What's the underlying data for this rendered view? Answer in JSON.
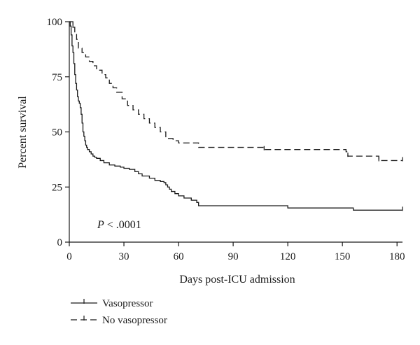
{
  "chart_data": {
    "type": "line",
    "subtype": "kaplan-meier",
    "xlabel": "Days post-ICU admission",
    "ylabel": "Percent survival",
    "xlim": [
      0,
      183
    ],
    "ylim": [
      0,
      100
    ],
    "x_ticks": [
      0,
      30,
      60,
      90,
      120,
      150,
      180
    ],
    "y_ticks": [
      0,
      25,
      50,
      75,
      100
    ],
    "grid": false,
    "legend_placement": "bottom-left",
    "annotation": {
      "prefix": "P",
      "text": " < .0001",
      "x": 6,
      "y": 8
    },
    "series": [
      {
        "name": "Vasopressor",
        "style": "solid",
        "color": "#1a1a1a",
        "x": [
          0,
          0.5,
          1,
          1.5,
          2,
          2.5,
          3,
          3.5,
          4,
          4.5,
          5,
          5.5,
          6,
          6.5,
          7,
          7.5,
          8,
          8.5,
          9,
          9.5,
          10,
          11,
          12,
          13,
          14,
          15,
          17,
          19,
          22,
          25,
          28,
          30,
          33,
          36,
          38,
          40,
          44,
          47,
          50,
          52,
          53,
          54,
          55,
          56,
          58,
          60,
          63,
          67,
          70,
          71,
          119,
          120,
          155,
          156,
          183
        ],
        "y": [
          100,
          98,
          94,
          89,
          86,
          81,
          76,
          72,
          69,
          66,
          64,
          63,
          61,
          58,
          54,
          50,
          48,
          46,
          44,
          43,
          42,
          41,
          40,
          39,
          38.5,
          38,
          37,
          36,
          35,
          34.5,
          34,
          33.5,
          33,
          32,
          31,
          30,
          29,
          28,
          27.5,
          27,
          26,
          25,
          24,
          23,
          22,
          21,
          20,
          19,
          18,
          16.5,
          16.5,
          15.5,
          15.5,
          14.5,
          14.5
        ],
        "censor_x": [
          183
        ]
      },
      {
        "name": "No vasopressor",
        "style": "dashed",
        "color": "#1a1a1a",
        "x": [
          0,
          2,
          3,
          4,
          5,
          7,
          9,
          11,
          13,
          15,
          18,
          20,
          22,
          24,
          26,
          29,
          32,
          35,
          38,
          41,
          44,
          47,
          50,
          53,
          57,
          60,
          63,
          71,
          105,
          107,
          140,
          152,
          153,
          168,
          170,
          183
        ],
        "y": [
          100,
          97.5,
          95,
          92,
          88,
          86,
          84,
          82,
          80,
          78,
          76,
          74.5,
          72,
          70,
          68,
          65,
          62,
          60,
          58,
          56,
          54,
          52,
          50,
          47,
          46,
          45,
          45,
          43,
          43,
          42,
          42,
          41,
          39,
          39,
          37,
          37
        ],
        "censor_x": [
          2,
          107,
          153,
          170,
          183
        ]
      }
    ]
  }
}
